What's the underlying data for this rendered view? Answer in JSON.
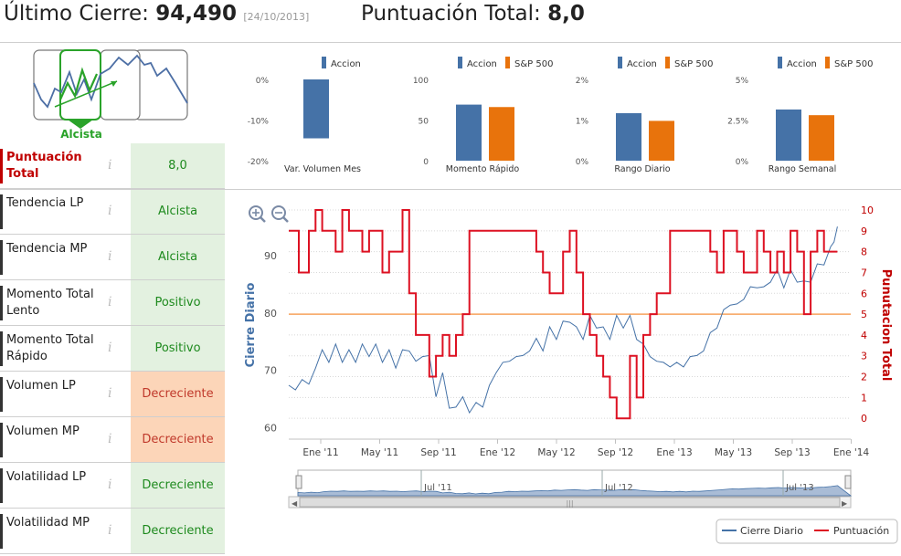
{
  "header": {
    "last_close_label": "Último Cierre:",
    "last_close_value": "94,490",
    "last_close_date": "[24/10/2013]",
    "total_score_label": "Puntuación Total:",
    "total_score_value": "8,0"
  },
  "trend": {
    "label": "Alcista"
  },
  "info_glyph": "i",
  "rows": [
    {
      "label": "Puntuación Total",
      "value": "8,0",
      "tone": "green"
    },
    {
      "label": "Tendencia LP",
      "value": "Alcista",
      "tone": "green"
    },
    {
      "label": "Tendencia MP",
      "value": "Alcista",
      "tone": "green"
    },
    {
      "label": "Momento Total Lento",
      "value": "Positivo",
      "tone": "green"
    },
    {
      "label": "Momento Total Rápido",
      "value": "Positivo",
      "tone": "green"
    },
    {
      "label": "Volumen LP",
      "value": "Decreciente",
      "tone": "orange"
    },
    {
      "label": "Volumen MP",
      "value": "Decreciente",
      "tone": "orange"
    },
    {
      "label": "Volatilidad LP",
      "value": "Decreciente",
      "tone": "green"
    },
    {
      "label": "Volatilidad MP",
      "value": "Decreciente",
      "tone": "green"
    }
  ],
  "colors": {
    "accion": "#4572a7",
    "sp500": "#e8730c",
    "score": "#dd1122",
    "threshold": "#f7a35c"
  },
  "chart_data": [
    {
      "type": "bar",
      "title": "Var. Volumen Mes",
      "legend": [
        "Accion"
      ],
      "yticks": [
        "0%",
        "-10%",
        "-20%"
      ],
      "ylim": [
        -20,
        0
      ],
      "series": [
        {
          "name": "Accion",
          "values": [
            -14.5
          ]
        }
      ]
    },
    {
      "type": "bar",
      "title": "Momento Rápido",
      "legend": [
        "Accion",
        "S&P 500"
      ],
      "yticks": [
        "100",
        "50",
        "0"
      ],
      "ylim": [
        0,
        100
      ],
      "series": [
        {
          "name": "Accion",
          "values": [
            69
          ]
        },
        {
          "name": "S&P 500",
          "values": [
            66
          ]
        }
      ]
    },
    {
      "type": "bar",
      "title": "Rango Diario",
      "legend": [
        "Accion",
        "S&P 500"
      ],
      "yticks": [
        "2%",
        "1%",
        "0%"
      ],
      "ylim": [
        0,
        2
      ],
      "series": [
        {
          "name": "Accion",
          "values": [
            1.17
          ]
        },
        {
          "name": "S&P 500",
          "values": [
            0.98
          ]
        }
      ]
    },
    {
      "type": "bar",
      "title": "Rango Semanal",
      "legend": [
        "Accion",
        "S&P 500"
      ],
      "yticks": [
        "5%",
        "2.5%",
        "0%"
      ],
      "ylim": [
        0,
        5
      ],
      "series": [
        {
          "name": "Accion",
          "values": [
            3.15
          ]
        },
        {
          "name": "S&P 500",
          "values": [
            2.8
          ]
        }
      ]
    },
    {
      "type": "line",
      "ylabel": "Cierre Diario",
      "y2label": "Punutacion Total",
      "ylim": [
        58,
        98
      ],
      "y2lim": [
        -1,
        10
      ],
      "yticks": [
        "90",
        "80",
        "70",
        "60"
      ],
      "y2ticks": [
        "10",
        "9",
        "8",
        "7",
        "6",
        "5",
        "4",
        "3",
        "2",
        "1",
        "0"
      ],
      "xticks": [
        "Ene '11",
        "May '11",
        "Sep '11",
        "Ene '12",
        "May '12",
        "Sep '12",
        "Ene '13",
        "May '13",
        "Sep '13",
        "Ene '14"
      ],
      "navigator_ticks": [
        "Jul '11",
        "Jul '12",
        "Jul '13"
      ],
      "threshold": 5,
      "legend": [
        "Cierre Diario",
        "Puntuación"
      ],
      "series": [
        {
          "name": "Cierre Diario",
          "points": [
            [
              0,
              68
            ],
            [
              0.02,
              66
            ],
            [
              0.04,
              69
            ],
            [
              0.06,
              67
            ],
            [
              0.08,
              71
            ],
            [
              0.1,
              73
            ],
            [
              0.12,
              72
            ],
            [
              0.14,
              74
            ],
            [
              0.16,
              72
            ],
            [
              0.18,
              73
            ],
            [
              0.2,
              72
            ],
            [
              0.22,
              74
            ],
            [
              0.24,
              73
            ],
            [
              0.26,
              74
            ],
            [
              0.28,
              72
            ],
            [
              0.3,
              73
            ],
            [
              0.32,
              71
            ],
            [
              0.34,
              73
            ],
            [
              0.36,
              74
            ],
            [
              0.38,
              71
            ],
            [
              0.4,
              73
            ],
            [
              0.42,
              72
            ],
            [
              0.44,
              66
            ],
            [
              0.46,
              69
            ],
            [
              0.48,
              64
            ],
            [
              0.5,
              63
            ],
            [
              0.52,
              66
            ],
            [
              0.54,
              62
            ],
            [
              0.56,
              65
            ],
            [
              0.58,
              63
            ],
            [
              0.6,
              68
            ],
            [
              0.62,
              69
            ],
            [
              0.64,
              72
            ],
            [
              0.66,
              71
            ],
            [
              0.68,
              73
            ],
            [
              0.7,
              72
            ],
            [
              0.72,
              74
            ],
            [
              0.74,
              75
            ],
            [
              0.76,
              74
            ],
            [
              0.78,
              77
            ],
            [
              0.8,
              76
            ],
            [
              0.82,
              78
            ],
            [
              0.84,
              79
            ],
            [
              0.86,
              77
            ],
            [
              0.88,
              76
            ],
            [
              0.9,
              79
            ],
            [
              0.92,
              78
            ],
            [
              0.94,
              77
            ],
            [
              0.96,
              76
            ],
            [
              0.98,
              79
            ],
            [
              1.0,
              78
            ],
            [
              1.02,
              79
            ],
            [
              1.04,
              76
            ],
            [
              1.06,
              74
            ],
            [
              1.08,
              73
            ],
            [
              1.1,
              71
            ],
            [
              1.12,
              72
            ],
            [
              1.14,
              70
            ],
            [
              1.16,
              72
            ],
            [
              1.18,
              70
            ],
            [
              1.2,
              73
            ],
            [
              1.22,
              72
            ],
            [
              1.24,
              74
            ],
            [
              1.26,
              76
            ],
            [
              1.28,
              78
            ],
            [
              1.3,
              80
            ],
            [
              1.32,
              82
            ],
            [
              1.34,
              81
            ],
            [
              1.36,
              83
            ],
            [
              1.38,
              84
            ],
            [
              1.4,
              85
            ],
            [
              1.42,
              84
            ],
            [
              1.44,
              86
            ],
            [
              1.46,
              87
            ],
            [
              1.48,
              85
            ],
            [
              1.5,
              87
            ],
            [
              1.52,
              86
            ],
            [
              1.54,
              85
            ],
            [
              1.56,
              86
            ],
            [
              1.58,
              88
            ],
            [
              1.6,
              89
            ],
            [
              1.62,
              91
            ],
            [
              1.63,
              93
            ],
            [
              1.64,
              94.5
            ]
          ]
        },
        {
          "name": "Puntuación",
          "steps": [
            [
              0,
              9
            ],
            [
              0.03,
              7
            ],
            [
              0.06,
              9
            ],
            [
              0.08,
              10
            ],
            [
              0.1,
              9
            ],
            [
              0.14,
              8
            ],
            [
              0.16,
              10
            ],
            [
              0.18,
              9
            ],
            [
              0.22,
              8
            ],
            [
              0.24,
              9
            ],
            [
              0.28,
              7
            ],
            [
              0.3,
              8
            ],
            [
              0.34,
              10
            ],
            [
              0.36,
              6
            ],
            [
              0.38,
              4
            ],
            [
              0.42,
              2
            ],
            [
              0.44,
              3
            ],
            [
              0.46,
              4
            ],
            [
              0.48,
              3
            ],
            [
              0.5,
              4
            ],
            [
              0.52,
              5
            ],
            [
              0.54,
              9
            ],
            [
              0.56,
              9
            ],
            [
              0.6,
              9
            ],
            [
              0.66,
              9
            ],
            [
              0.72,
              9
            ],
            [
              0.74,
              8
            ],
            [
              0.76,
              7
            ],
            [
              0.78,
              6
            ],
            [
              0.82,
              8
            ],
            [
              0.84,
              9
            ],
            [
              0.86,
              7
            ],
            [
              0.88,
              5
            ],
            [
              0.9,
              4
            ],
            [
              0.92,
              3
            ],
            [
              0.94,
              2
            ],
            [
              0.96,
              1
            ],
            [
              0.98,
              0
            ],
            [
              1.02,
              3
            ],
            [
              1.04,
              1
            ],
            [
              1.06,
              4
            ],
            [
              1.08,
              5
            ],
            [
              1.1,
              6
            ],
            [
              1.14,
              9
            ],
            [
              1.2,
              9
            ],
            [
              1.26,
              8
            ],
            [
              1.28,
              7
            ],
            [
              1.3,
              9
            ],
            [
              1.34,
              8
            ],
            [
              1.36,
              7
            ],
            [
              1.4,
              9
            ],
            [
              1.42,
              8
            ],
            [
              1.44,
              7
            ],
            [
              1.46,
              8
            ],
            [
              1.48,
              7
            ],
            [
              1.5,
              9
            ],
            [
              1.52,
              8
            ],
            [
              1.54,
              5
            ],
            [
              1.56,
              8
            ],
            [
              1.58,
              9
            ],
            [
              1.6,
              8
            ],
            [
              1.64,
              8
            ]
          ]
        }
      ]
    }
  ]
}
